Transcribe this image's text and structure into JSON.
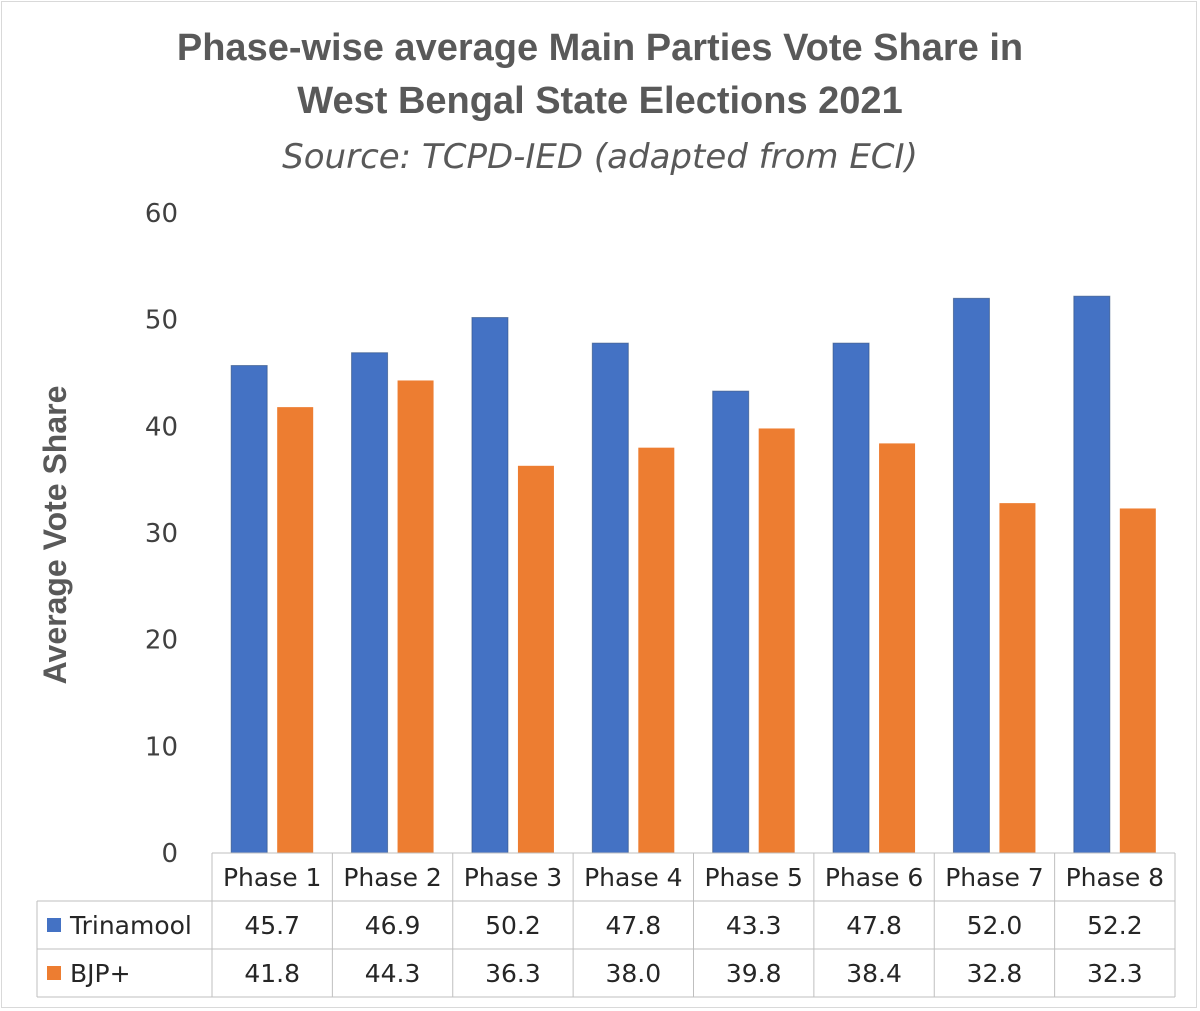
{
  "chart_data": {
    "type": "bar",
    "title": "Phase-wise average Main Parties Vote Share in West Bengal State Elections 2021",
    "title_lines": [
      "Phase-wise average Main Parties Vote Share in",
      "West Bengal State Elections 2021"
    ],
    "subtitle": "Source: TCPD-IED (adapted from ECI)",
    "xlabel": "",
    "ylabel": "Average Vote Share",
    "ylim": [
      0,
      60
    ],
    "yticks": [
      0,
      10,
      20,
      30,
      40,
      50,
      60
    ],
    "grid": false,
    "legend": "data-table",
    "categories": [
      "Phase 1",
      "Phase 2",
      "Phase 3",
      "Phase 4",
      "Phase 5",
      "Phase 6",
      "Phase 7",
      "Phase 8"
    ],
    "series": [
      {
        "name": "Trinamool",
        "color": "#4472c4",
        "values": [
          45.7,
          46.9,
          50.2,
          47.8,
          43.3,
          47.8,
          52.0,
          52.2
        ],
        "labels": [
          "45.7",
          "46.9",
          "50.2",
          "47.8",
          "43.3",
          "47.8",
          "52.0",
          "52.2"
        ]
      },
      {
        "name": "BJP+",
        "color": "#ed7d31",
        "values": [
          41.8,
          44.3,
          36.3,
          38.0,
          39.8,
          38.4,
          32.8,
          32.3
        ],
        "labels": [
          "41.8",
          "44.3",
          "36.3",
          "38.0",
          "39.8",
          "38.4",
          "32.8",
          "32.3"
        ]
      }
    ]
  }
}
